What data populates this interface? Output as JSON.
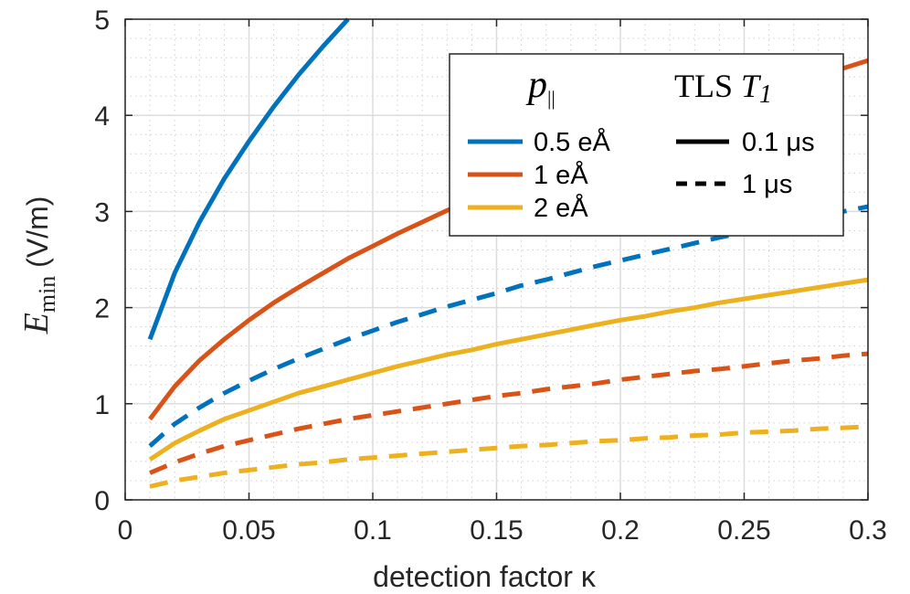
{
  "chart_data": {
    "type": "line",
    "xlabel": "detection factor κ",
    "ylabel": {
      "symbol": "E",
      "subscript": "min",
      "unit": " (V/m)"
    },
    "xlim": [
      0,
      0.3
    ],
    "ylim": [
      0,
      5
    ],
    "x_ticks": [
      0,
      0.05,
      0.1,
      0.15,
      0.2,
      0.25,
      0.3
    ],
    "x_tick_labels": [
      "0",
      "0.05",
      "0.1",
      "0.15",
      "0.2",
      "0.25",
      "0.3"
    ],
    "y_ticks": [
      0,
      1,
      2,
      3,
      4,
      5
    ],
    "y_tick_labels": [
      "0",
      "1",
      "2",
      "3",
      "4",
      "5"
    ],
    "grid": true,
    "minor_grid": true,
    "legend": {
      "placement": "top-right",
      "dipole_heading": {
        "symbol": "p",
        "subscript": "||"
      },
      "tls_heading": {
        "text": "TLS ",
        "symbol": "T",
        "subscript": "1"
      },
      "dipole_entries": [
        {
          "label": "0.5 eÅ",
          "color": "#0072BD"
        },
        {
          "label": "1 eÅ",
          "color": "#D95319"
        },
        {
          "label": "2 eÅ",
          "color": "#EDB120"
        }
      ],
      "tls_entries": [
        {
          "label": "0.1 μs",
          "style": "solid"
        },
        {
          "label": "1 μs",
          "style": "dashed"
        }
      ]
    },
    "x": [
      0.01,
      0.02,
      0.03,
      0.04,
      0.05,
      0.06,
      0.07,
      0.08,
      0.09,
      0.1,
      0.11,
      0.12,
      0.13,
      0.14,
      0.15,
      0.16,
      0.17,
      0.18,
      0.19,
      0.2,
      0.21,
      0.22,
      0.23,
      0.24,
      0.25,
      0.26,
      0.27,
      0.28,
      0.29,
      0.3
    ],
    "series": [
      {
        "name": "0.5 eÅ, 0.1 μs",
        "color": "#0072BD",
        "style": "solid",
        "values": [
          1.67,
          2.36,
          2.89,
          3.34,
          3.73,
          4.09,
          4.42,
          4.72,
          5.01,
          null,
          null,
          null,
          null,
          null,
          null,
          null,
          null,
          null,
          null,
          null,
          null,
          null,
          null,
          null,
          null,
          null,
          null,
          null,
          null,
          null
        ]
      },
      {
        "name": "1 eÅ, 0.1 μs",
        "color": "#D95319",
        "style": "solid",
        "values": [
          0.84,
          1.18,
          1.45,
          1.67,
          1.87,
          2.05,
          2.21,
          2.36,
          2.51,
          2.64,
          2.77,
          2.89,
          3.01,
          3.12,
          3.23,
          3.34,
          3.44,
          3.54,
          3.64,
          3.73,
          3.83,
          3.92,
          4.0,
          4.09,
          4.17,
          4.26,
          4.34,
          4.42,
          4.49,
          4.57
        ]
      },
      {
        "name": "2 eÅ, 0.1 μs",
        "color": "#EDB120",
        "style": "solid",
        "values": [
          0.42,
          0.59,
          0.72,
          0.84,
          0.93,
          1.02,
          1.11,
          1.18,
          1.25,
          1.32,
          1.39,
          1.45,
          1.51,
          1.56,
          1.62,
          1.67,
          1.72,
          1.77,
          1.82,
          1.87,
          1.91,
          1.96,
          2.0,
          2.05,
          2.09,
          2.13,
          2.17,
          2.21,
          2.25,
          2.29
        ]
      },
      {
        "name": "0.5 eÅ, 1 μs",
        "color": "#0072BD",
        "style": "dashed",
        "values": [
          0.56,
          0.79,
          0.96,
          1.11,
          1.24,
          1.36,
          1.47,
          1.57,
          1.67,
          1.76,
          1.85,
          1.93,
          2.01,
          2.08,
          2.15,
          2.23,
          2.29,
          2.36,
          2.43,
          2.49,
          2.55,
          2.61,
          2.67,
          2.73,
          2.78,
          2.84,
          2.89,
          2.95,
          3.0,
          3.05
        ]
      },
      {
        "name": "1 eÅ, 1 μs",
        "color": "#D95319",
        "style": "dashed",
        "values": [
          0.28,
          0.39,
          0.48,
          0.56,
          0.62,
          0.68,
          0.74,
          0.79,
          0.84,
          0.88,
          0.92,
          0.96,
          1.0,
          1.04,
          1.08,
          1.11,
          1.15,
          1.18,
          1.21,
          1.25,
          1.28,
          1.31,
          1.34,
          1.36,
          1.39,
          1.42,
          1.45,
          1.47,
          1.5,
          1.52
        ]
      },
      {
        "name": "2 eÅ, 1 μs",
        "color": "#EDB120",
        "style": "dashed",
        "values": [
          0.14,
          0.2,
          0.24,
          0.28,
          0.31,
          0.34,
          0.37,
          0.39,
          0.42,
          0.44,
          0.46,
          0.48,
          0.5,
          0.52,
          0.54,
          0.56,
          0.57,
          0.59,
          0.61,
          0.62,
          0.64,
          0.65,
          0.67,
          0.68,
          0.7,
          0.71,
          0.72,
          0.74,
          0.75,
          0.76
        ]
      }
    ]
  }
}
